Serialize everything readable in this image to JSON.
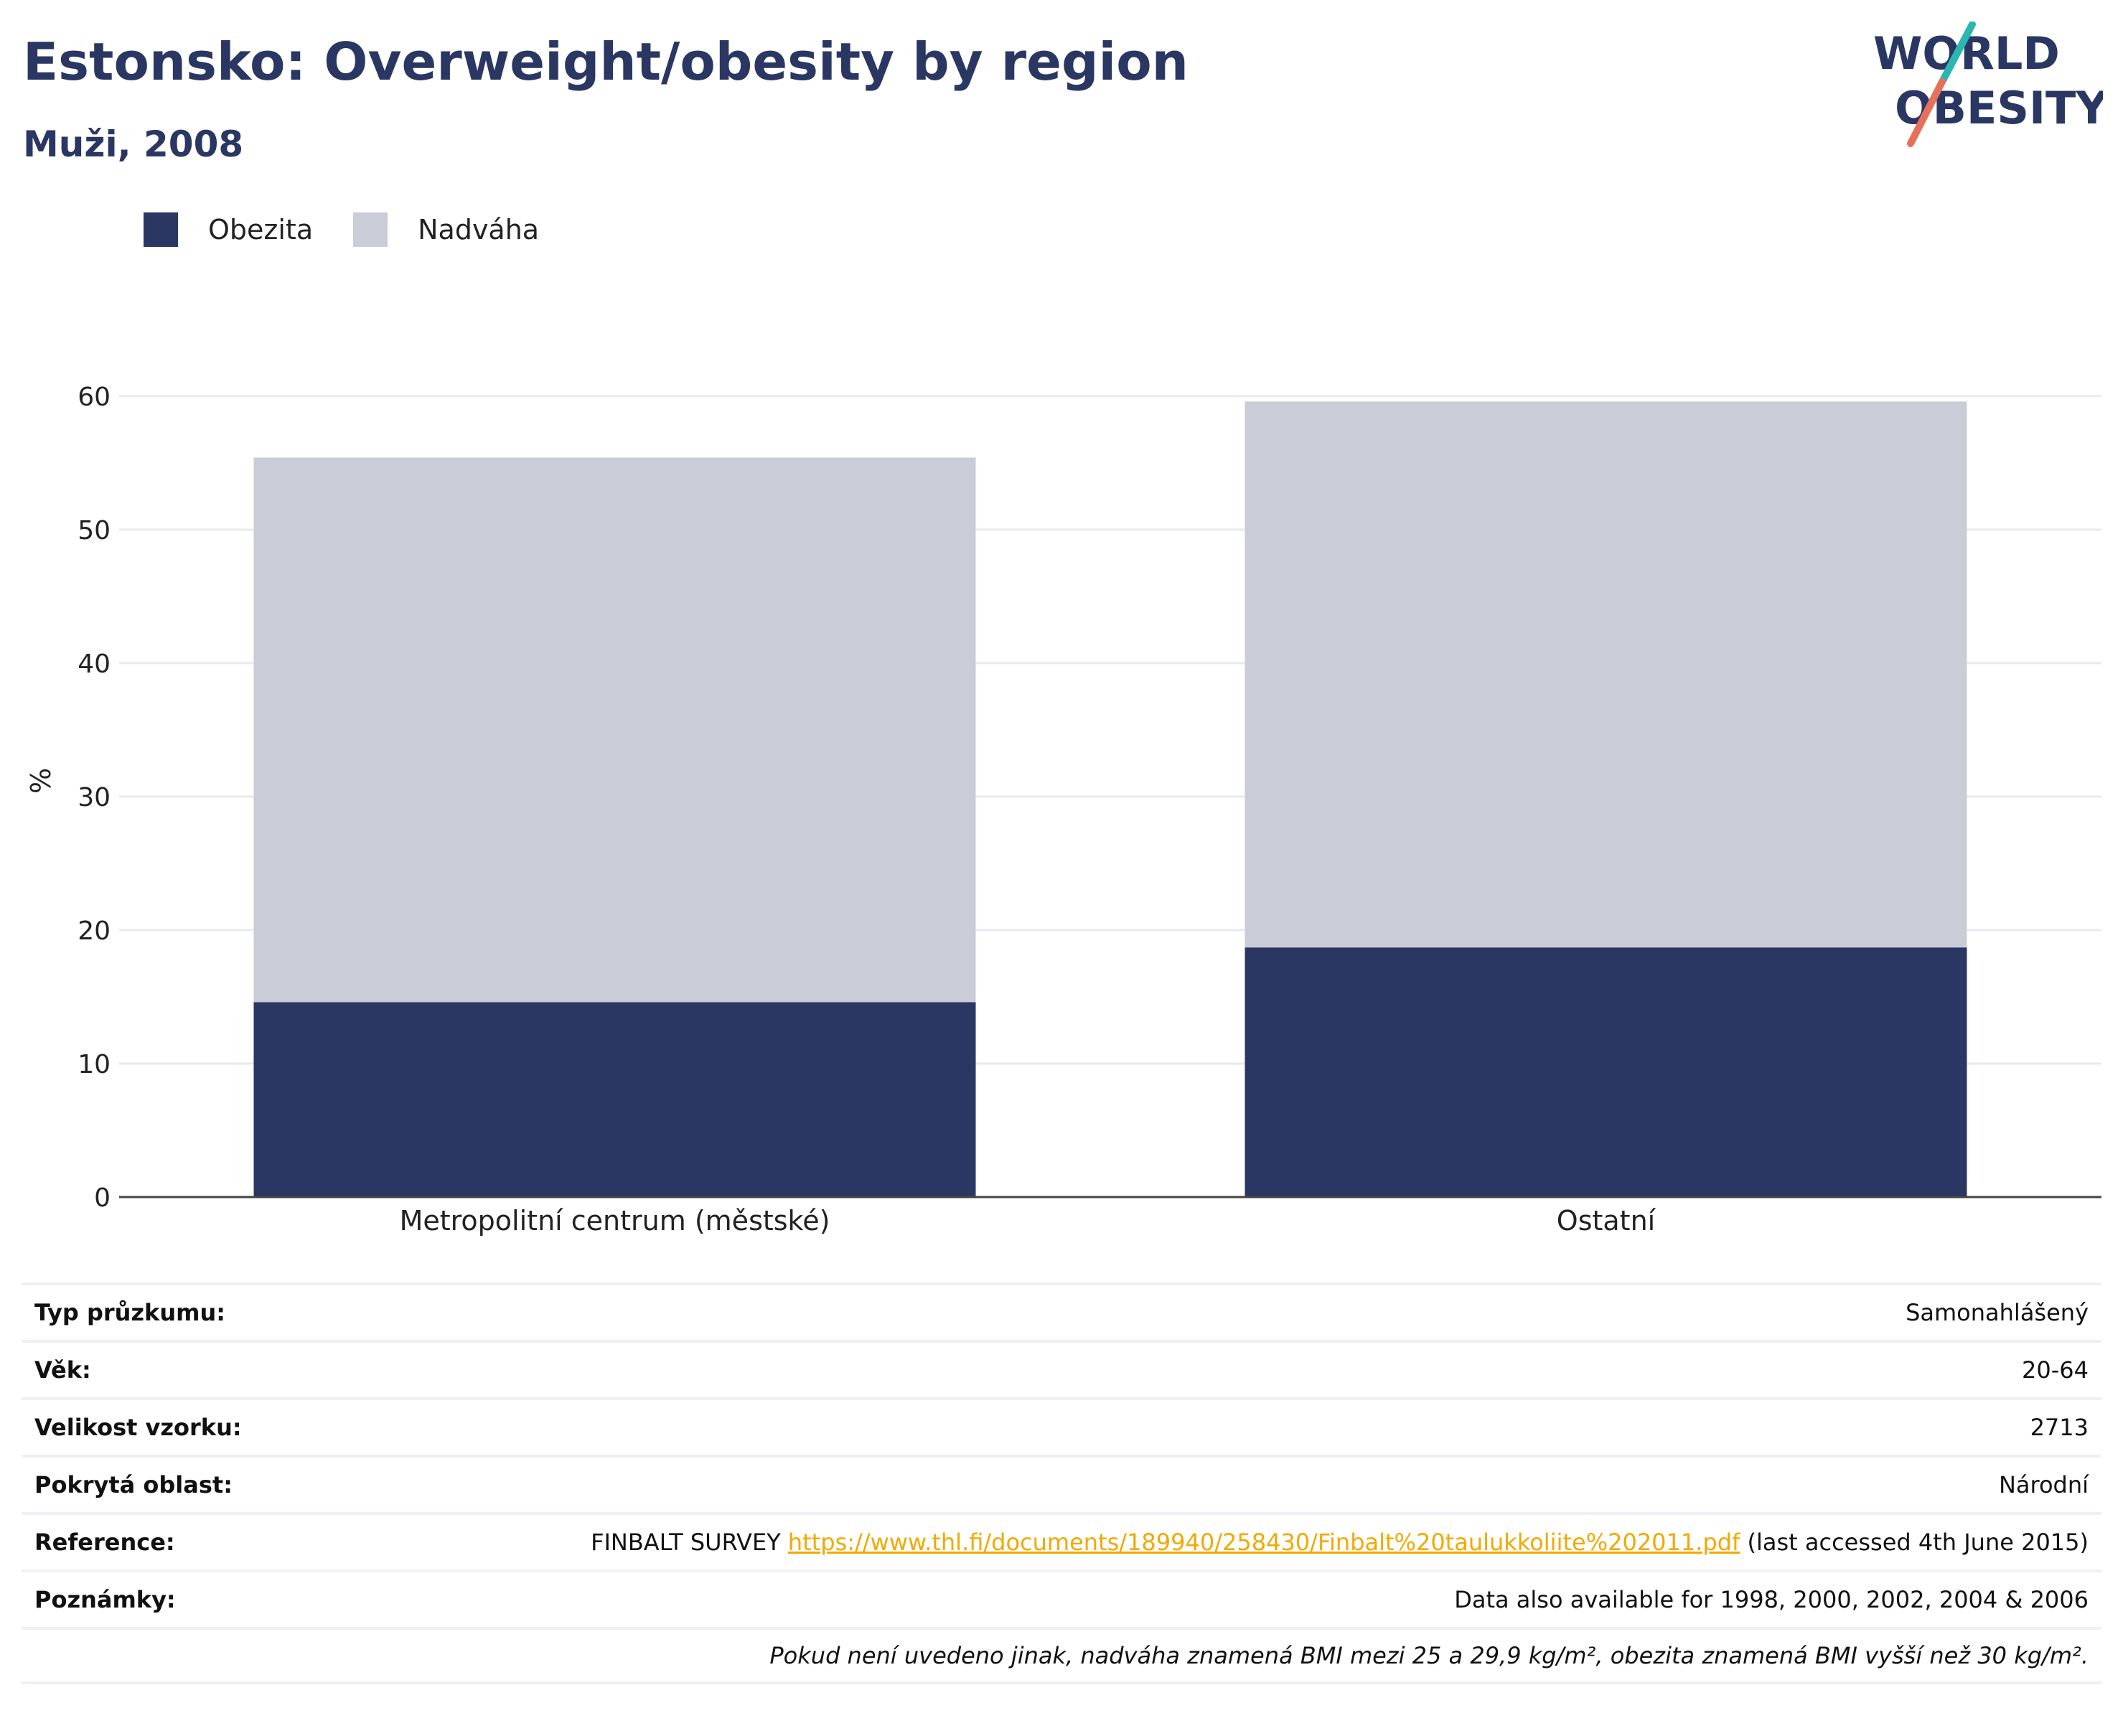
{
  "header": {
    "title": "Estonsko: Overweight/obesity by region",
    "subtitle": "Muži, 2008"
  },
  "logo": {
    "line1": "WORLD",
    "line2": "OBESITY"
  },
  "legend": {
    "items": [
      {
        "label": "Obezita",
        "color": "#2a3763"
      },
      {
        "label": "Nadváha",
        "color": "#cacdd8"
      }
    ]
  },
  "chart_data": {
    "type": "bar",
    "stacked": true,
    "categories": [
      "Metropolitní centrum (městské)",
      "Ostatní"
    ],
    "series": [
      {
        "name": "Obezita",
        "color": "#2a3763",
        "values": [
          14.6,
          18.7
        ]
      },
      {
        "name": "Nadváha",
        "color": "#cacdd8",
        "values": [
          40.8,
          40.9
        ]
      }
    ],
    "ylabel": "%",
    "ylim": [
      0,
      60
    ],
    "yticks": [
      0,
      10,
      20,
      30,
      40,
      50,
      60
    ],
    "grid": true,
    "legend_position": "top-left"
  },
  "info": {
    "rows": [
      {
        "label": "Typ průzkumu:",
        "value": "Samonahlášený"
      },
      {
        "label": "Věk:",
        "value": "20-64"
      },
      {
        "label": "Velikost vzorku:",
        "value": "2713"
      },
      {
        "label": "Pokrytá oblast:",
        "value": "Národní"
      }
    ],
    "reference": {
      "label": "Reference:",
      "prefix": "FINBALT SURVEY ",
      "link": "https://www.thl.fi/documents/189940/258430/Finbalt%20taulukkoliite%202011.pdf",
      "suffix": " (last accessed 4th June 2015)"
    },
    "notes": {
      "label": "Poznámky:",
      "value": "Data also available for 1998, 2000, 2002, 2004 & 2006"
    },
    "footnote": "Pokud není uvedeno jinak, nadváha znamená BMI mezi 25 a 29,9 kg/m², obezita znamená BMI vyšší než 30 kg/m²."
  }
}
